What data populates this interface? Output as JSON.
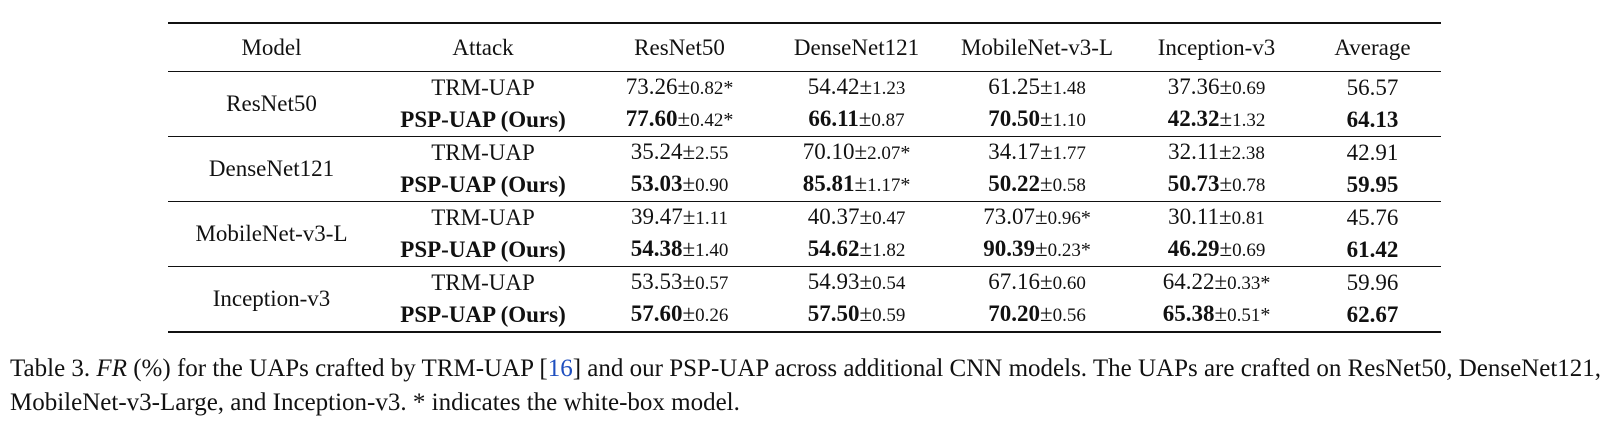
{
  "table": {
    "headers": [
      "Model",
      "Attack",
      "ResNet50",
      "DenseNet121",
      "MobileNet-v3-L",
      "Inception-v3",
      "Average"
    ],
    "groups": [
      {
        "model": "ResNet50",
        "rows": [
          {
            "attack": "TRM-UAP",
            "bold": false,
            "cells": [
              {
                "v": "73.26",
                "e": "0.82",
                "star": "*",
                "bold": false
              },
              {
                "v": "54.42",
                "e": "1.23",
                "star": "",
                "bold": false
              },
              {
                "v": "61.25",
                "e": "1.48",
                "star": "",
                "bold": false
              },
              {
                "v": "37.36",
                "e": "0.69",
                "star": "",
                "bold": false
              }
            ],
            "avg": "56.57"
          },
          {
            "attack": "PSP-UAP (Ours)",
            "bold": true,
            "cells": [
              {
                "v": "77.60",
                "e": "0.42",
                "star": "*",
                "bold": true
              },
              {
                "v": "66.11",
                "e": "0.87",
                "star": "",
                "bold": true
              },
              {
                "v": "70.50",
                "e": "1.10",
                "star": "",
                "bold": true
              },
              {
                "v": "42.32",
                "e": "1.32",
                "star": "",
                "bold": true
              }
            ],
            "avg": "64.13"
          }
        ]
      },
      {
        "model": "DenseNet121",
        "rows": [
          {
            "attack": "TRM-UAP",
            "bold": false,
            "cells": [
              {
                "v": "35.24",
                "e": "2.55",
                "star": "",
                "bold": false
              },
              {
                "v": "70.10",
                "e": "2.07",
                "star": "*",
                "bold": false
              },
              {
                "v": "34.17",
                "e": "1.77",
                "star": "",
                "bold": false
              },
              {
                "v": "32.11",
                "e": "2.38",
                "star": "",
                "bold": false
              }
            ],
            "avg": "42.91"
          },
          {
            "attack": "PSP-UAP (Ours)",
            "bold": true,
            "cells": [
              {
                "v": "53.03",
                "e": "0.90",
                "star": "",
                "bold": true
              },
              {
                "v": "85.81",
                "e": "1.17",
                "star": "*",
                "bold": true
              },
              {
                "v": "50.22",
                "e": "0.58",
                "star": "",
                "bold": true
              },
              {
                "v": "50.73",
                "e": "0.78",
                "star": "",
                "bold": true
              }
            ],
            "avg": "59.95"
          }
        ]
      },
      {
        "model": "MobileNet-v3-L",
        "rows": [
          {
            "attack": "TRM-UAP",
            "bold": false,
            "cells": [
              {
                "v": "39.47",
                "e": "1.11",
                "star": "",
                "bold": false
              },
              {
                "v": "40.37",
                "e": "0.47",
                "star": "",
                "bold": false
              },
              {
                "v": "73.07",
                "e": "0.96",
                "star": "*",
                "bold": false
              },
              {
                "v": "30.11",
                "e": "0.81",
                "star": "",
                "bold": false
              }
            ],
            "avg": "45.76"
          },
          {
            "attack": "PSP-UAP (Ours)",
            "bold": true,
            "cells": [
              {
                "v": "54.38",
                "e": "1.40",
                "star": "",
                "bold": true
              },
              {
                "v": "54.62",
                "e": "1.82",
                "star": "",
                "bold": true
              },
              {
                "v": "90.39",
                "e": "0.23",
                "star": "*",
                "bold": true
              },
              {
                "v": "46.29",
                "e": "0.69",
                "star": "",
                "bold": true
              }
            ],
            "avg": "61.42"
          }
        ]
      },
      {
        "model": "Inception-v3",
        "rows": [
          {
            "attack": "TRM-UAP",
            "bold": false,
            "cells": [
              {
                "v": "53.53",
                "e": "0.57",
                "star": "",
                "bold": false
              },
              {
                "v": "54.93",
                "e": "0.54",
                "star": "",
                "bold": false
              },
              {
                "v": "67.16",
                "e": "0.60",
                "star": "",
                "bold": false
              },
              {
                "v": "64.22",
                "e": "0.33",
                "star": "*",
                "bold": false
              }
            ],
            "avg": "59.96"
          },
          {
            "attack": "PSP-UAP (Ours)",
            "bold": true,
            "cells": [
              {
                "v": "57.60",
                "e": "0.26",
                "star": "",
                "bold": true
              },
              {
                "v": "57.50",
                "e": "0.59",
                "star": "",
                "bold": true
              },
              {
                "v": "70.20",
                "e": "0.56",
                "star": "",
                "bold": true
              },
              {
                "v": "65.38",
                "e": "0.51",
                "star": "*",
                "bold": true
              }
            ],
            "avg": "62.67"
          }
        ]
      }
    ]
  },
  "caption": {
    "prefix": "Table 3.",
    "symbol": "FR",
    "part1": "(%) for the UAPs crafted by TRM-UAP [",
    "ref": "16",
    "part2": "] and our PSP-UAP across additional CNN models.  The UAPs are crafted on ResNet50, DenseNet121, MobileNet-v3-Large, and Inception-v3. * indicates the white-box model."
  },
  "symbols": {
    "pm": "±"
  }
}
